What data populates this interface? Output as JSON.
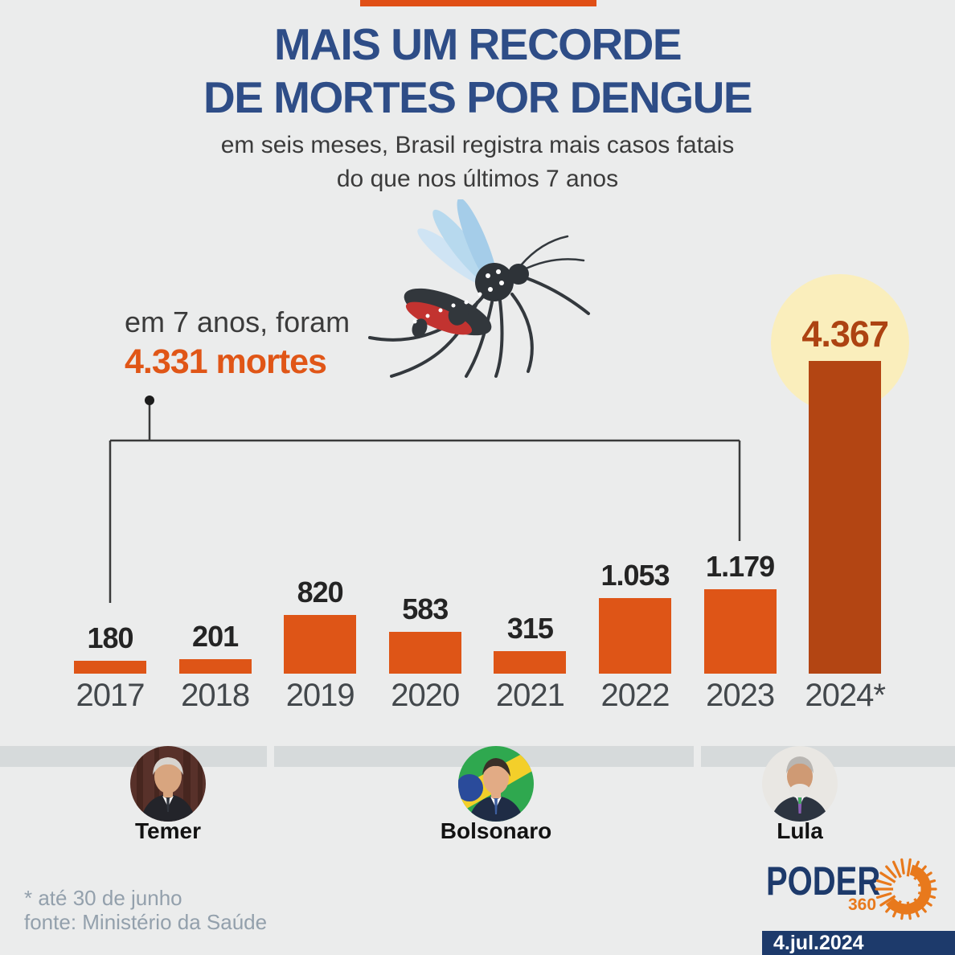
{
  "header": {
    "title_line1": "MAIS UM RECORDE",
    "title_line2": "DE MORTES POR DENGUE",
    "subtitle_line1": "em seis meses, Brasil registra mais casos fatais",
    "subtitle_line2": "do que nos últimos 7 anos"
  },
  "annotation": {
    "prefix": "em 7 anos, foram",
    "value_text": "4.331 mortes",
    "value": 4331
  },
  "chart_data": {
    "type": "bar",
    "title": "MAIS UM RECORDE DE MORTES POR DENGUE",
    "subtitle": "em seis meses, Brasil registra mais casos fatais do que nos últimos 7 anos",
    "categories": [
      "2017",
      "2018",
      "2019",
      "2020",
      "2021",
      "2022",
      "2023",
      "2024*"
    ],
    "values": [
      180,
      201,
      820,
      583,
      315,
      1053,
      1179,
      4367
    ],
    "value_labels": [
      "180",
      "201",
      "820",
      "583",
      "315",
      "1.053",
      "1.179",
      "4.367"
    ],
    "highlight_index": 7,
    "annotation": "em 7 anos, foram 4.331 mortes",
    "ylim": [
      0,
      4367
    ],
    "gridlines": false,
    "legend": "none",
    "xlabel": "",
    "ylabel": ""
  },
  "presidents": [
    {
      "name": "Temer"
    },
    {
      "name": "Bolsonaro"
    },
    {
      "name": "Lula"
    }
  ],
  "footer": {
    "note_asterisk": "* até 30 de junho",
    "source": "fonte: Ministério da Saúde",
    "brand": "PODER",
    "brand_number": "360",
    "date": "4.jul.2024"
  },
  "colors": {
    "background": "#ebecec",
    "accent_strip": "#e04f16",
    "annotation_orange": "#e05617",
    "bar": "#de5517",
    "bar_highlight": "#b34513",
    "value_highlight": "#ad4312",
    "halo": "#faeebc",
    "band": "#d6dadb",
    "navy": "#1d3a6b",
    "title": "#2e4d87"
  }
}
